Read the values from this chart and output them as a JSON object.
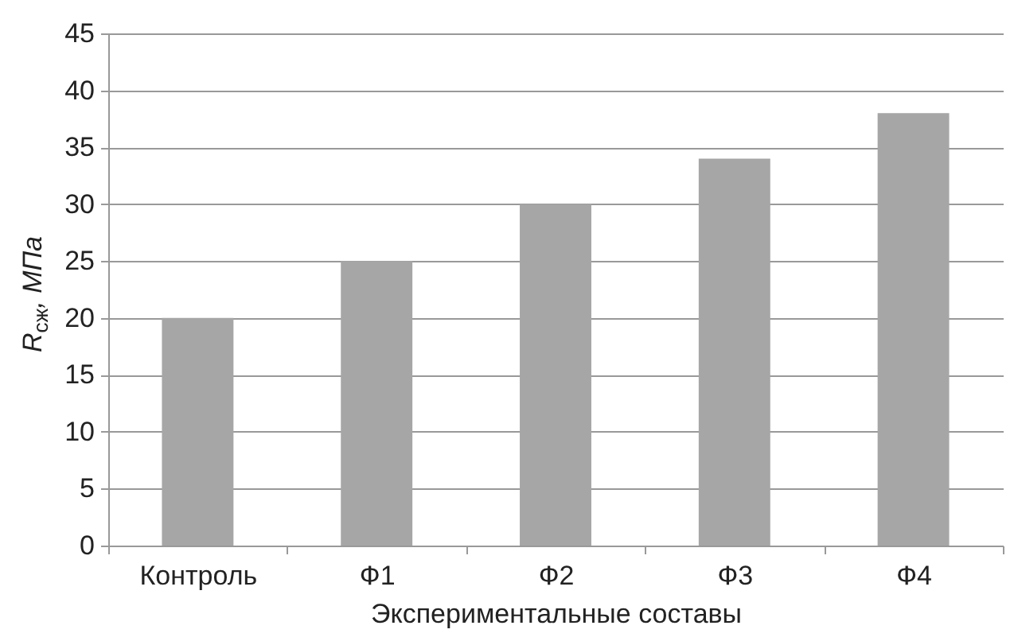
{
  "chart_data": {
    "type": "bar",
    "xlabel": "Экспериментальные составы",
    "ylabel": "R$_{сж}$, МПа",
    "categories": [
      "Контроль",
      "Ф1",
      "Ф2",
      "Ф3",
      "Ф4"
    ],
    "values": [
      20,
      25,
      30,
      34,
      38
    ],
    "color": "#a6a6a6",
    "ylim": [
      0,
      45
    ],
    "yticks": [
      0,
      5,
      10,
      15,
      20,
      25,
      30,
      35,
      40,
      45
    ],
    "grid": "y"
  }
}
